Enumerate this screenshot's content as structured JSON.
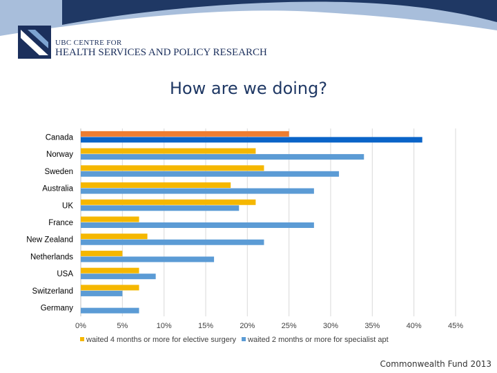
{
  "header": {
    "logo_line1": "UBC CENTRE FOR",
    "logo_line2": "HEALTH SERVICES AND POLICY RESEARCH",
    "logo_icon": "ubc-logo-icon"
  },
  "title": "How are we doing?",
  "source": "Commonwealth Fund 2013",
  "colors": {
    "series1": "#f5b700",
    "series2": "#5b9bd5",
    "canada_series1": "#ed7d31",
    "canada_series2": "#0a64c8",
    "banner_dark": "#1f3864"
  },
  "chart_data": {
    "type": "bar",
    "orientation": "horizontal",
    "title": "",
    "xlabel": "",
    "ylabel": "",
    "categories": [
      "Canada",
      "Norway",
      "Sweden",
      "Australia",
      "UK",
      "France",
      "New Zealand",
      "Netherlands",
      "USA",
      "Switzerland",
      "Germany"
    ],
    "series": [
      {
        "name": "waited 4 months or more for elective surgery",
        "values": [
          25,
          21,
          22,
          18,
          21,
          7,
          8,
          5,
          7,
          7,
          0
        ]
      },
      {
        "name": "waited 2 months or more for specialist apt",
        "values": [
          41,
          34,
          31,
          28,
          19,
          28,
          22,
          16,
          9,
          5,
          7
        ]
      }
    ],
    "xlim": [
      0,
      45
    ],
    "xticks": [
      0,
      5,
      10,
      15,
      20,
      25,
      30,
      35,
      40,
      45
    ],
    "xtick_labels": [
      "0%",
      "5%",
      "10%",
      "15%",
      "20%",
      "25%",
      "30%",
      "35%",
      "40%",
      "45%"
    ],
    "grid": true,
    "legend_position": "bottom"
  }
}
